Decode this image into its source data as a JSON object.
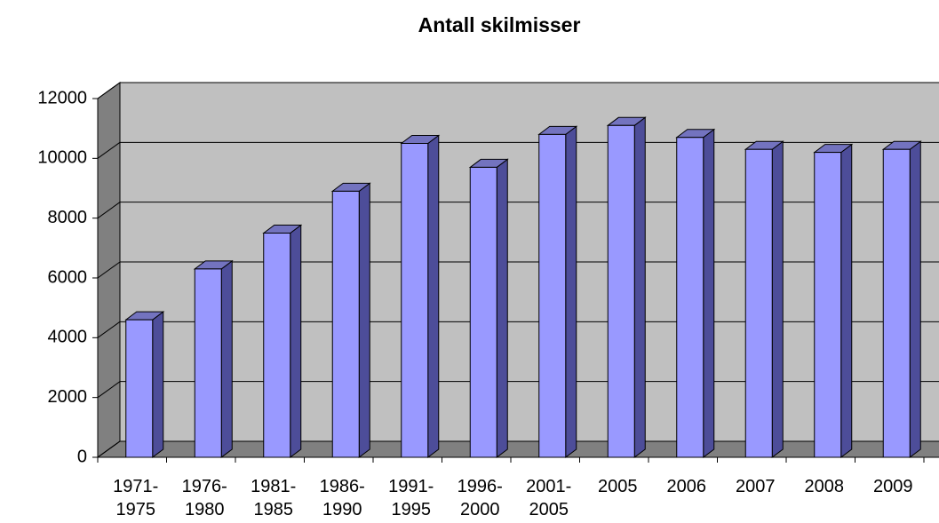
{
  "chart_data": {
    "type": "bar3d",
    "title": "Antall skilmisser",
    "categories": [
      "1971-1975",
      "1976-1980",
      "1981-1985",
      "1986-1990",
      "1991-1995",
      "1996-2000",
      "2001-2005",
      "2005",
      "2006",
      "2007",
      "2008",
      "2009"
    ],
    "values": [
      4600,
      6300,
      7500,
      8900,
      10500,
      9700,
      10800,
      11100,
      10700,
      10300,
      10200,
      10300
    ],
    "color": "#9999ff",
    "ylim": [
      0,
      12000
    ],
    "yticks": [
      0,
      2000,
      4000,
      6000,
      8000,
      10000,
      12000
    ],
    "grid": true
  }
}
